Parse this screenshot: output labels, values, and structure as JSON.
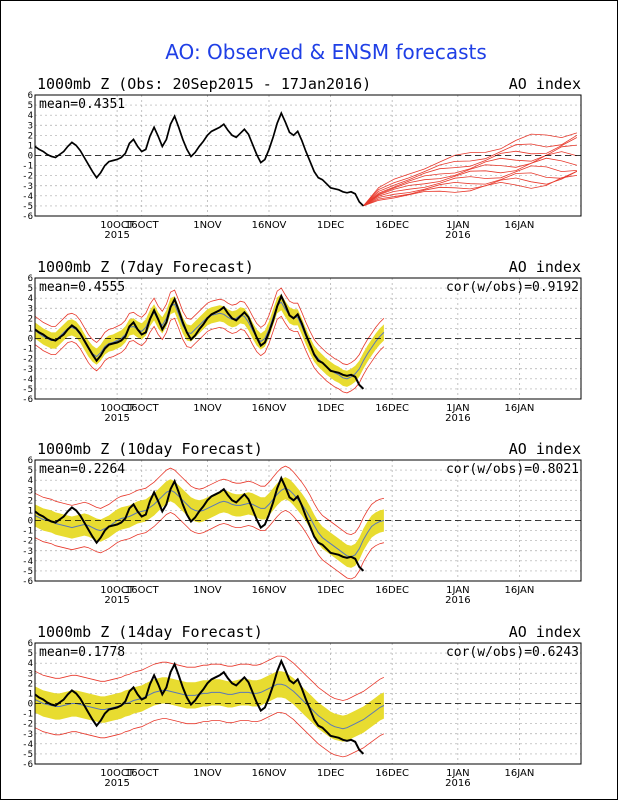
{
  "figure": {
    "title": "AO: Observed & ENSM forecasts",
    "title_color": "#1f3fe6",
    "colors": {
      "observed": "#000000",
      "ensemble_member": "#e8392c",
      "spread_band": "#e8dc30",
      "spread_edge": "#e8392c",
      "ensemble_mean": "#5a78b8",
      "zero_line": "#000000",
      "grid": "#aaaaaa"
    }
  },
  "chart_data": [
    {
      "type": "line",
      "title": "1000mb Z (Obs: 20Sep2015 - 17Jan2016)",
      "right_label": "AO index",
      "stat_left": "mean=0.4351",
      "stat_right": "",
      "x_tick_labels": [
        "10OCT\n2015",
        "16OCT",
        "1NOV",
        "16NOV",
        "1DEC",
        "16DEC",
        "1JAN\n2016",
        "16JAN"
      ],
      "ylim": [
        -6,
        6
      ],
      "yticks": [
        6,
        5,
        4,
        3,
        2,
        1,
        0,
        -1,
        -2,
        -3,
        -4,
        -5,
        -6
      ],
      "grid": true,
      "series": {
        "observed": [
          0.9,
          0.6,
          0.4,
          0.1,
          -0.1,
          -0.2,
          0.1,
          0.4,
          0.9,
          1.3,
          1.0,
          0.5,
          -0.2,
          -0.9,
          -1.6,
          -2.2,
          -1.7,
          -1.0,
          -0.6,
          -0.5,
          -0.4,
          -0.2,
          0.2,
          1.2,
          1.6,
          0.9,
          0.4,
          0.6,
          1.9,
          2.8,
          1.9,
          0.9,
          1.6,
          3.1,
          3.9,
          2.8,
          1.6,
          0.6,
          -0.1,
          0.3,
          0.9,
          1.4,
          2.0,
          2.4,
          2.6,
          2.8,
          3.1,
          2.5,
          2.0,
          1.8,
          2.2,
          2.6,
          2.1,
          1.1,
          0.1,
          -0.7,
          -0.4,
          0.6,
          1.8,
          3.2,
          4.2,
          3.3,
          2.3,
          2.0,
          2.4,
          1.5,
          0.4,
          -0.6,
          -1.6,
          -2.2,
          -2.4,
          -2.8,
          -3.2,
          -3.3,
          -3.4,
          -3.6,
          -3.7,
          -3.6,
          -3.8,
          -4.6,
          -5.0
        ],
        "ensemble_members": "10 red member traces fanning out from 17 Jan (start near -4.8) to about -2.5 .. +2.6 by day 14"
      }
    },
    {
      "type": "line",
      "title": "1000mb Z (7day Forecast)",
      "right_label": "AO index",
      "stat_left": "mean=0.4555",
      "stat_right": "cor(w/obs)=0.9192",
      "x_tick_labels": [
        "10OCT\n2015",
        "16OCT",
        "1NOV",
        "16NOV",
        "1DEC",
        "16DEC",
        "1JAN\n2016",
        "16JAN"
      ],
      "ylim": [
        -6,
        6
      ],
      "yticks": [
        6,
        5,
        4,
        3,
        2,
        1,
        0,
        -1,
        -2,
        -3,
        -4,
        -5,
        -6
      ],
      "grid": true,
      "series": {
        "observed": [
          0.9,
          0.6,
          0.4,
          0.1,
          -0.1,
          -0.2,
          0.1,
          0.4,
          0.9,
          1.3,
          1.0,
          0.5,
          -0.2,
          -0.9,
          -1.6,
          -2.2,
          -1.7,
          -1.0,
          -0.6,
          -0.5,
          -0.4,
          -0.2,
          0.2,
          1.2,
          1.6,
          0.9,
          0.4,
          0.6,
          1.9,
          2.8,
          1.9,
          0.9,
          1.6,
          3.1,
          3.9,
          2.8,
          1.6,
          0.6,
          -0.1,
          0.3,
          0.9,
          1.4,
          2.0,
          2.4,
          2.6,
          2.8,
          3.1,
          2.5,
          2.0,
          1.8,
          2.2,
          2.6,
          2.1,
          1.1,
          0.1,
          -0.7,
          -0.4,
          0.6,
          1.8,
          3.2,
          4.2,
          3.3,
          2.3,
          2.0,
          2.4,
          1.5,
          0.4,
          -0.6,
          -1.6,
          -2.2,
          -2.4,
          -2.8,
          -3.2,
          -3.3,
          -3.4,
          -3.6,
          -3.7,
          -3.6,
          -3.8,
          -4.6,
          -5.0
        ],
        "forecast_mean": [
          0.8,
          0.5,
          0.2,
          0.0,
          -0.2,
          -0.2,
          0.2,
          0.6,
          1.0,
          1.1,
          0.9,
          0.4,
          -0.3,
          -1.0,
          -1.5,
          -1.8,
          -1.4,
          -0.8,
          -0.5,
          -0.4,
          -0.2,
          0.0,
          0.4,
          1.1,
          1.2,
          0.9,
          0.7,
          1.1,
          2.0,
          2.6,
          1.8,
          1.3,
          2.0,
          3.2,
          3.4,
          2.4,
          1.3,
          0.6,
          0.5,
          0.9,
          1.3,
          1.7,
          2.1,
          2.3,
          2.4,
          2.5,
          2.4,
          2.1,
          1.9,
          2.0,
          2.3,
          2.2,
          1.6,
          0.8,
          0.1,
          -0.3,
          0.0,
          0.9,
          2.1,
          3.3,
          3.6,
          2.9,
          2.3,
          2.1,
          2.1,
          1.2,
          0.2,
          -0.7,
          -1.5,
          -2.0,
          -2.4,
          -2.8,
          -3.1,
          -3.4,
          -3.6,
          -3.9,
          -4.0,
          -3.8,
          -3.5,
          -3.0,
          -2.2,
          -1.5,
          -0.9,
          -0.3,
          0.2,
          0.6
        ],
        "spread_half_width": 0.8,
        "outer_envelope_half_width": 1.4
      }
    },
    {
      "type": "line",
      "title": "1000mb Z (10day Forecast)",
      "right_label": "AO index",
      "stat_left": "mean=0.2264",
      "stat_right": "cor(w/obs)=0.8021",
      "x_tick_labels": [
        "10OCT\n2015",
        "16OCT",
        "1NOV",
        "16NOV",
        "1DEC",
        "16DEC",
        "1JAN\n2016",
        "16JAN"
      ],
      "ylim": [
        -6,
        6
      ],
      "yticks": [
        6,
        5,
        4,
        3,
        2,
        1,
        0,
        -1,
        -2,
        -3,
        -4,
        -5,
        -6
      ],
      "grid": true,
      "series": {
        "observed": [
          0.9,
          0.6,
          0.4,
          0.1,
          -0.1,
          -0.2,
          0.1,
          0.4,
          0.9,
          1.3,
          1.0,
          0.5,
          -0.2,
          -0.9,
          -1.6,
          -2.2,
          -1.7,
          -1.0,
          -0.6,
          -0.5,
          -0.4,
          -0.2,
          0.2,
          1.2,
          1.6,
          0.9,
          0.4,
          0.6,
          1.9,
          2.8,
          1.9,
          0.9,
          1.6,
          3.1,
          3.9,
          2.8,
          1.6,
          0.6,
          -0.1,
          0.3,
          0.9,
          1.4,
          2.0,
          2.4,
          2.6,
          2.8,
          3.1,
          2.5,
          2.0,
          1.8,
          2.2,
          2.6,
          2.1,
          1.1,
          0.1,
          -0.7,
          -0.4,
          0.6,
          1.8,
          3.2,
          4.2,
          3.3,
          2.3,
          2.0,
          2.4,
          1.5,
          0.4,
          -0.6,
          -1.6,
          -2.2,
          -2.4,
          -2.8,
          -3.2,
          -3.3,
          -3.4,
          -3.6,
          -3.7,
          -3.6,
          -3.8,
          -4.6,
          -5.0
        ],
        "forecast_mean": [
          0.5,
          0.3,
          0.1,
          0.0,
          -0.1,
          -0.3,
          -0.4,
          -0.5,
          -0.6,
          -0.7,
          -0.6,
          -0.5,
          -0.4,
          -0.5,
          -0.7,
          -0.9,
          -1.0,
          -0.8,
          -0.6,
          -0.3,
          0.0,
          0.2,
          0.3,
          0.4,
          0.6,
          0.8,
          0.9,
          1.0,
          1.3,
          1.6,
          2.0,
          2.4,
          2.8,
          3.0,
          2.8,
          2.4,
          2.0,
          1.6,
          1.2,
          1.0,
          0.9,
          1.0,
          1.2,
          1.4,
          1.6,
          1.8,
          1.9,
          1.8,
          1.6,
          1.5,
          1.5,
          1.6,
          1.7,
          1.6,
          1.4,
          1.2,
          1.2,
          1.6,
          2.1,
          2.6,
          3.0,
          3.2,
          3.0,
          2.6,
          2.1,
          1.6,
          1.0,
          0.3,
          -0.5,
          -1.2,
          -1.7,
          -2.0,
          -2.3,
          -2.6,
          -2.9,
          -3.2,
          -3.5,
          -3.6,
          -3.4,
          -2.8,
          -1.9,
          -1.2,
          -0.6,
          -0.3,
          -0.1,
          0.0
        ],
        "spread_half_width": 1.1,
        "outer_envelope_half_width": 2.2
      }
    },
    {
      "type": "line",
      "title": "1000mb Z (14day Forecast)",
      "right_label": "AO index",
      "stat_left": "mean=0.1778",
      "stat_right": "cor(w/obs)=0.6243",
      "x_tick_labels": [
        "10OCT\n2015",
        "16OCT",
        "1NOV",
        "16NOV",
        "1DEC",
        "16DEC",
        "1JAN\n2016",
        "16JAN"
      ],
      "ylim": [
        -6,
        6
      ],
      "yticks": [
        6,
        5,
        4,
        3,
        2,
        1,
        0,
        -1,
        -2,
        -3,
        -4,
        -5,
        -6
      ],
      "grid": true,
      "series": {
        "observed": [
          0.9,
          0.6,
          0.4,
          0.1,
          -0.1,
          -0.2,
          0.1,
          0.4,
          0.9,
          1.3,
          1.0,
          0.5,
          -0.2,
          -0.9,
          -1.6,
          -2.2,
          -1.7,
          -1.0,
          -0.6,
          -0.5,
          -0.4,
          -0.2,
          0.2,
          1.2,
          1.6,
          0.9,
          0.4,
          0.6,
          1.9,
          2.8,
          1.9,
          0.9,
          1.6,
          3.1,
          3.9,
          2.8,
          1.6,
          0.6,
          -0.1,
          0.3,
          0.9,
          1.4,
          2.0,
          2.4,
          2.6,
          2.8,
          3.1,
          2.5,
          2.0,
          1.8,
          2.2,
          2.6,
          2.1,
          1.1,
          0.1,
          -0.7,
          -0.4,
          0.6,
          1.8,
          3.2,
          4.2,
          3.3,
          2.3,
          2.0,
          2.4,
          1.5,
          0.4,
          -0.6,
          -1.6,
          -2.2,
          -2.4,
          -2.8,
          -3.2,
          -3.3,
          -3.4,
          -3.6,
          -3.7,
          -3.6,
          -3.8,
          -4.6,
          -5.0
        ],
        "forecast_mean": [
          0.4,
          0.2,
          0.0,
          -0.1,
          -0.2,
          -0.3,
          -0.3,
          -0.2,
          -0.1,
          0.0,
          0.0,
          -0.1,
          -0.2,
          -0.3,
          -0.4,
          -0.5,
          -0.6,
          -0.6,
          -0.5,
          -0.4,
          -0.3,
          -0.2,
          0.0,
          0.1,
          0.3,
          0.4,
          0.5,
          0.7,
          0.9,
          1.1,
          1.2,
          1.3,
          1.3,
          1.2,
          1.1,
          1.0,
          0.9,
          0.8,
          0.8,
          0.8,
          0.9,
          1.0,
          1.0,
          1.1,
          1.1,
          1.1,
          1.0,
          0.9,
          0.9,
          1.0,
          1.1,
          1.1,
          1.1,
          1.0,
          1.0,
          1.1,
          1.3,
          1.5,
          1.7,
          1.9,
          1.9,
          1.8,
          1.5,
          1.2,
          0.8,
          0.4,
          0.0,
          -0.4,
          -0.8,
          -1.2,
          -1.5,
          -1.8,
          -2.1,
          -2.3,
          -2.4,
          -2.5,
          -2.4,
          -2.2,
          -2.0,
          -1.8,
          -1.6,
          -1.3,
          -1.0,
          -0.7,
          -0.4,
          -0.2
        ],
        "spread_half_width": 1.3,
        "outer_envelope_half_width": 2.8
      }
    }
  ]
}
